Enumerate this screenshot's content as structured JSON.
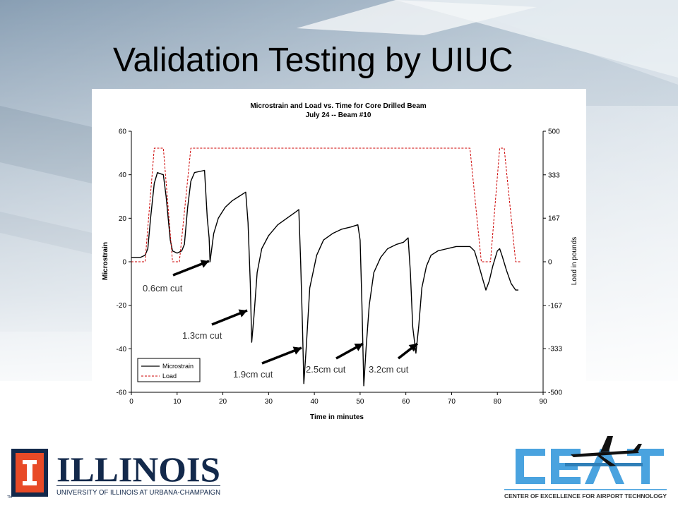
{
  "slide": {
    "title": "Validation Testing by UIUC",
    "accent_color": "#0a2a6b"
  },
  "chart_data": {
    "type": "line",
    "title": "Microstrain and Load vs. Time for Core Drilled Beam",
    "subtitle": "July 24 -- Beam #10",
    "xlabel": "Time in minutes",
    "ylabel": "Microstrain",
    "y2label": "Load in pounds",
    "xlim": [
      0,
      90
    ],
    "ylim": [
      -60,
      60
    ],
    "y2lim": [
      -500,
      500
    ],
    "x_ticks": [
      0,
      10,
      20,
      30,
      40,
      50,
      60,
      70,
      80,
      90
    ],
    "y_ticks": [
      60,
      40,
      20,
      0,
      -20,
      -40,
      -60
    ],
    "y2_ticks": [
      500,
      333,
      167,
      0,
      -167,
      -333,
      -500
    ],
    "grid": false,
    "legend_position": "bottom-left",
    "series": [
      {
        "name": "Microstrain",
        "axis": "left",
        "color": "#000000",
        "style": "solid",
        "points": [
          [
            0,
            2
          ],
          [
            2,
            2
          ],
          [
            3,
            3
          ],
          [
            3.6,
            6
          ],
          [
            4.2,
            20
          ],
          [
            5,
            36
          ],
          [
            5.7,
            41
          ],
          [
            7,
            40
          ],
          [
            7.6,
            30
          ],
          [
            8.5,
            10
          ],
          [
            9,
            5
          ],
          [
            10,
            4
          ],
          [
            11,
            5
          ],
          [
            11.6,
            8
          ],
          [
            12.3,
            25
          ],
          [
            13,
            37
          ],
          [
            13.8,
            41
          ],
          [
            16,
            42
          ],
          [
            16.6,
            20
          ],
          [
            17,
            11
          ],
          [
            17.2,
            0
          ],
          [
            18,
            13
          ],
          [
            19,
            20
          ],
          [
            20.5,
            25
          ],
          [
            22,
            28
          ],
          [
            23.5,
            30
          ],
          [
            25,
            32
          ],
          [
            25.5,
            18
          ],
          [
            26,
            -10
          ],
          [
            26.3,
            -37
          ],
          [
            26.8,
            -25
          ],
          [
            27.5,
            -5
          ],
          [
            28.5,
            6
          ],
          [
            30,
            12
          ],
          [
            32,
            17
          ],
          [
            34,
            20
          ],
          [
            36,
            23
          ],
          [
            36.6,
            24
          ],
          [
            37,
            0
          ],
          [
            37.4,
            -30
          ],
          [
            37.7,
            -56
          ],
          [
            38.2,
            -40
          ],
          [
            39,
            -12
          ],
          [
            40.5,
            3
          ],
          [
            42,
            10
          ],
          [
            44,
            13
          ],
          [
            46,
            15
          ],
          [
            48,
            16
          ],
          [
            49.5,
            17
          ],
          [
            50,
            10
          ],
          [
            50.4,
            -20
          ],
          [
            50.8,
            -57
          ],
          [
            51.3,
            -40
          ],
          [
            52,
            -20
          ],
          [
            53,
            -5
          ],
          [
            54.5,
            2
          ],
          [
            56,
            6
          ],
          [
            58,
            8
          ],
          [
            59.5,
            9
          ],
          [
            60.5,
            11
          ],
          [
            61,
            -5
          ],
          [
            61.5,
            -30
          ],
          [
            62.2,
            -42
          ],
          [
            62.8,
            -30
          ],
          [
            63.5,
            -12
          ],
          [
            64.5,
            -2
          ],
          [
            65.5,
            3
          ],
          [
            67,
            5
          ],
          [
            69,
            6
          ],
          [
            71,
            7
          ],
          [
            74,
            7
          ],
          [
            75,
            5
          ],
          [
            76,
            -2
          ],
          [
            76.8,
            -8
          ],
          [
            77.5,
            -13
          ],
          [
            78.2,
            -9
          ],
          [
            79,
            -2
          ],
          [
            80,
            5
          ],
          [
            80.5,
            6
          ],
          [
            81,
            3
          ],
          [
            82,
            -4
          ],
          [
            83,
            -10
          ],
          [
            84,
            -13
          ],
          [
            84.6,
            -13
          ]
        ]
      },
      {
        "name": "Load",
        "axis": "right",
        "color": "#cc0000",
        "style": "dashed",
        "points": [
          [
            0,
            0
          ],
          [
            3,
            0
          ],
          [
            5,
            435
          ],
          [
            7,
            435
          ],
          [
            9,
            0
          ],
          [
            10.5,
            0
          ],
          [
            13,
            435
          ],
          [
            74,
            435
          ],
          [
            76.5,
            0
          ],
          [
            78.5,
            0
          ],
          [
            80.5,
            435
          ],
          [
            81.5,
            435
          ],
          [
            84,
            0
          ],
          [
            85,
            0
          ]
        ]
      }
    ],
    "annotations": [
      "0.6cm cut",
      "1.3cm cut",
      "1.9cm cut",
      "2.5cm cut",
      "3.2cm cut"
    ]
  },
  "footer": {
    "illinois_wordmark": "ILLINOIS",
    "illinois_subtitle": "UNIVERSITY OF ILLINOIS AT URBANA-CHAMPAIGN",
    "illinois_tm": "TM",
    "ceat_subtitle": "CENTER OF EXCELLENCE FOR AIRPORT TECHNOLOGY",
    "illinois_orange": "#e84a27",
    "illinois_blue": "#13294b",
    "ceat_blue": "#4aa3df"
  }
}
